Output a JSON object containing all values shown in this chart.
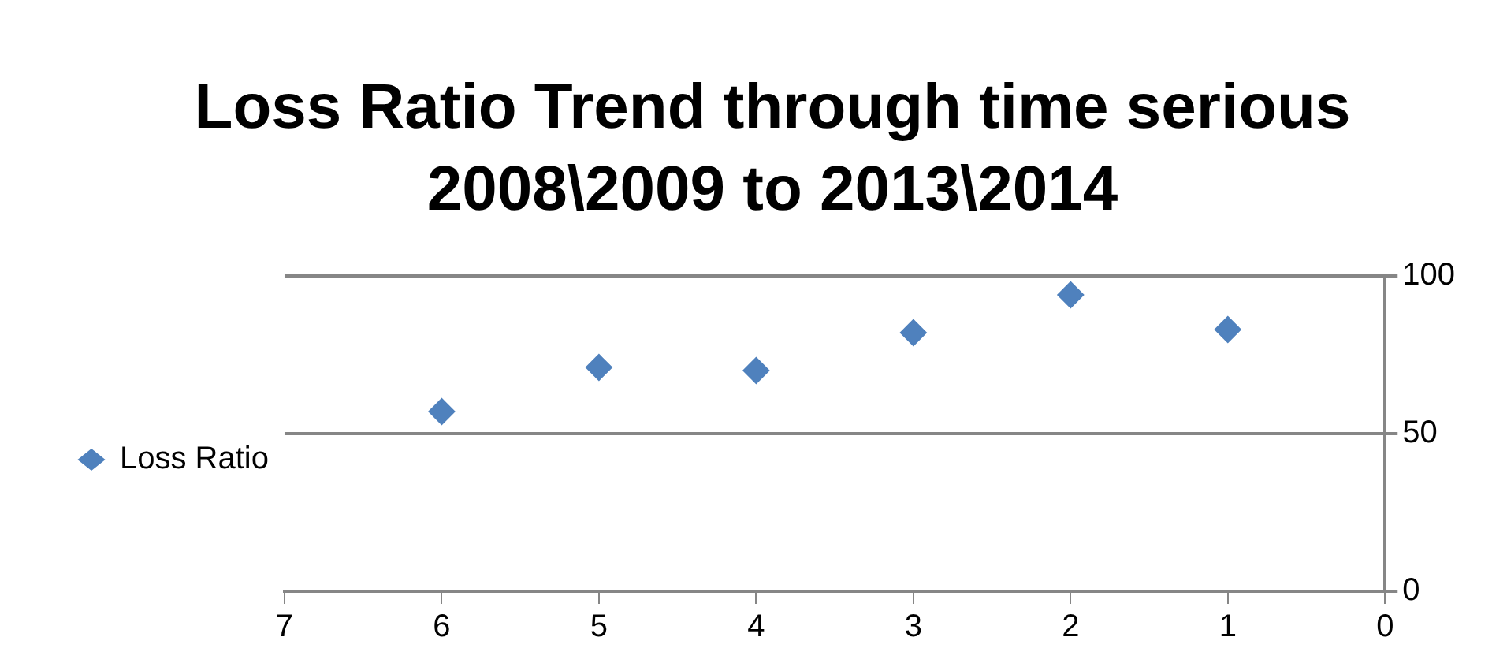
{
  "chart_data": {
    "type": "scatter",
    "title": "Loss Ratio Trend through time serious 2008\\2009 to 2013\\2014",
    "x": [
      6,
      5,
      4,
      3,
      2,
      1
    ],
    "series": [
      {
        "name": "Loss Ratio",
        "color": "#4f81bd",
        "values": [
          57,
          71,
          70,
          82,
          94,
          83
        ]
      }
    ],
    "xlim": [
      7,
      0
    ],
    "xticks": [
      7,
      6,
      5,
      4,
      3,
      2,
      1,
      0
    ],
    "ylim": [
      0,
      100
    ],
    "yticks": [
      0,
      50,
      100
    ],
    "grid": "y",
    "legend": "left",
    "marker": "diamond"
  }
}
